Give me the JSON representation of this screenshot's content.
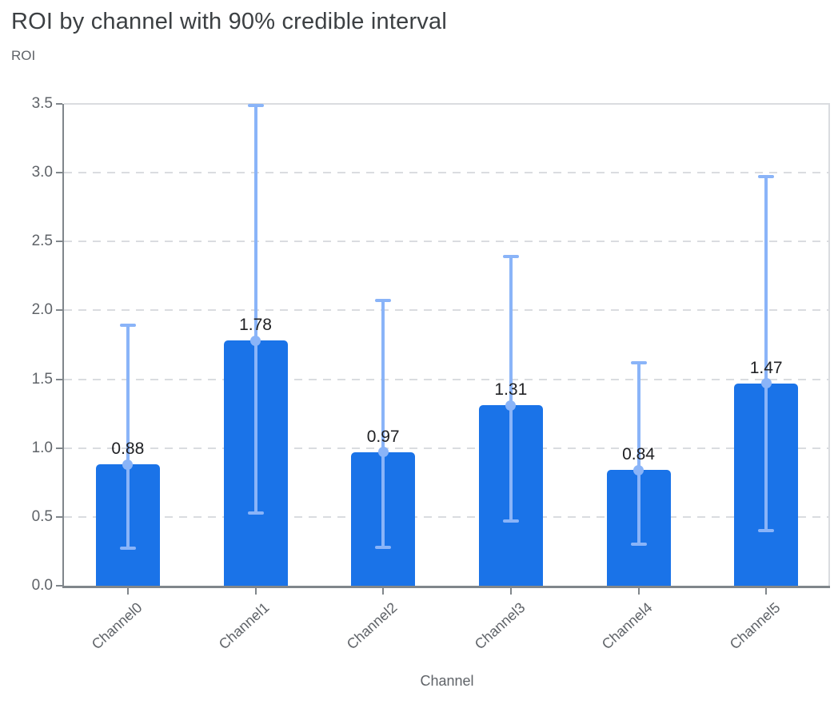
{
  "header": {
    "title": "ROI by channel with 90% credible interval"
  },
  "colors": {
    "bar": "#1a73e8",
    "error_bar": "#8ab4f8",
    "grid": "#dadce0",
    "axis": "#80868b",
    "title_text": "#3c4043",
    "tick_text": "#5f6368",
    "value_text": "#202124"
  },
  "chart_data": {
    "type": "bar",
    "title": "ROI by channel with 90% credible interval",
    "xlabel": "Channel",
    "ylabel": "ROI",
    "categories": [
      "Channel0",
      "Channel1",
      "Channel2",
      "Channel3",
      "Channel4",
      "Channel5"
    ],
    "values": [
      0.88,
      1.78,
      0.97,
      1.31,
      0.84,
      1.47
    ],
    "value_labels": [
      "0.88",
      "1.78",
      "0.97",
      "1.31",
      "0.84",
      "1.47"
    ],
    "error_low": [
      0.27,
      0.53,
      0.28,
      0.47,
      0.3,
      0.4
    ],
    "error_high": [
      1.89,
      3.49,
      2.07,
      2.39,
      1.62,
      2.97
    ],
    "ylim": [
      0,
      3.5
    ],
    "yticks": [
      "0.0",
      "0.5",
      "1.0",
      "1.5",
      "2.0",
      "2.5",
      "3.0",
      "3.5"
    ],
    "grid": true,
    "legend": "none",
    "error_bar_meaning": "90% credible interval"
  }
}
